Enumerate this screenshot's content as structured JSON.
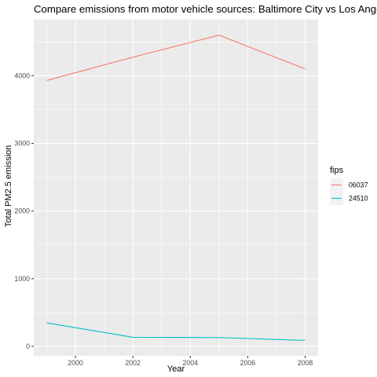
{
  "chart_data": {
    "type": "line",
    "title": "Compare emissions from motor vehicle sources: Baltimore City vs Los Angeles",
    "xlabel": "Year",
    "ylabel": "Total PM2.5 emission",
    "x": [
      1999,
      2002,
      2005,
      2008
    ],
    "xlim": [
      1998.55,
      2008.45
    ],
    "ylim": [
      -140,
      4830
    ],
    "xticks": [
      2000,
      2002,
      2004,
      2006,
      2008
    ],
    "xtick_labels": [
      "2000",
      "2002",
      "2004",
      "2006",
      "2008"
    ],
    "yticks": [
      0,
      1000,
      2000,
      3000,
      4000
    ],
    "ytick_labels": [
      "0",
      "1000",
      "2000",
      "3000",
      "4000"
    ],
    "grid": true,
    "legend": {
      "title": "fips",
      "placement": "right"
    },
    "series": [
      {
        "name": "06037",
        "color": "#F8766D",
        "values": [
          3931,
          4274,
          4601,
          4101
        ]
      },
      {
        "name": "24510",
        "color": "#00BFC4",
        "values": [
          347,
          134,
          130,
          88
        ]
      }
    ]
  }
}
